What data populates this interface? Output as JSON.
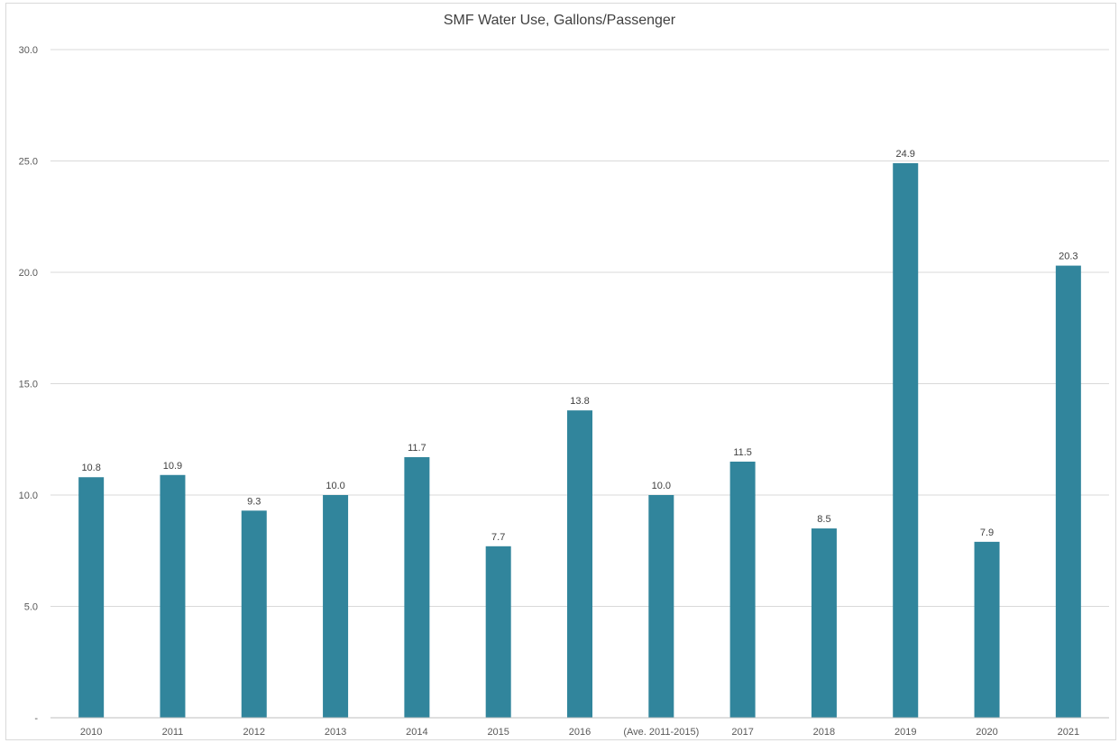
{
  "chart_data": {
    "type": "bar",
    "title": "SMF Water Use, Gallons/Passenger",
    "xlabel": "",
    "ylabel": "",
    "categories": [
      "2010",
      "2011",
      "2012",
      "2013",
      "2014",
      "2015",
      "2016",
      "(Ave. 2011-2015)",
      "2017",
      "2018",
      "2019",
      "2020",
      "2021"
    ],
    "values": [
      10.8,
      10.9,
      9.3,
      10.0,
      11.7,
      7.7,
      13.8,
      10.0,
      11.5,
      8.5,
      24.9,
      7.9,
      20.3
    ],
    "data_labels": [
      "10.8",
      "10.9",
      "9.3",
      "10.0",
      "11.7",
      "7.7",
      "13.8",
      "10.0",
      "11.5",
      "8.5",
      "24.9",
      "7.9",
      "20.3"
    ],
    "ylim": [
      0,
      30
    ],
    "yticks": [
      0,
      5,
      10,
      15,
      20,
      25,
      30
    ],
    "ytick_labels": [
      "-",
      "5.0",
      "10.0",
      "15.0",
      "20.0",
      "25.0",
      "30.0"
    ],
    "grid": true,
    "legend": "none",
    "bar_color": "#31859c"
  }
}
